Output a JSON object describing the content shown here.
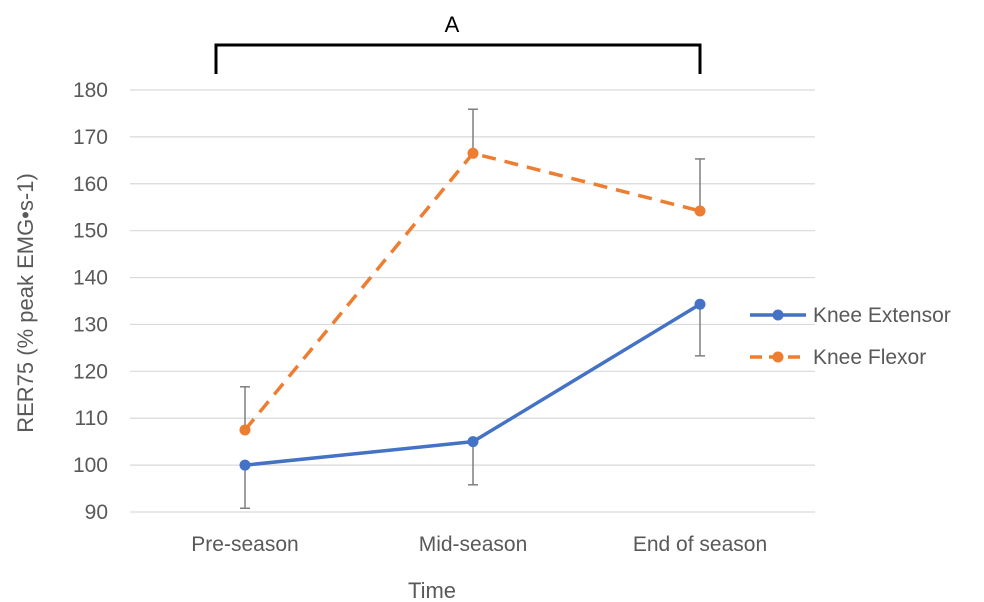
{
  "chart_data": {
    "type": "line",
    "categories": [
      "Pre-season",
      "Mid-season",
      "End of season"
    ],
    "xlabel": "Time",
    "ylabel": "RER75 (% peak EMG•s-1)",
    "ylim": [
      90,
      180
    ],
    "yticks": [
      90,
      100,
      110,
      120,
      130,
      140,
      150,
      160,
      170,
      180
    ],
    "grid": true,
    "legend_position": "right",
    "series": [
      {
        "name": "Knee Extensor",
        "values": [
          100,
          105,
          134.3
        ],
        "error": [
          9.2,
          9.2,
          11.0
        ],
        "error_direction": "lower",
        "color": "#4472C4",
        "line_style": "solid"
      },
      {
        "name": "Knee Flexor",
        "values": [
          107.5,
          166.5,
          154.2
        ],
        "error": [
          9.2,
          9.4,
          11.1
        ],
        "error_direction": "upper",
        "color": "#ED7D31",
        "line_style": "dashed"
      }
    ],
    "annotations": [
      {
        "text": "A",
        "type": "bracket",
        "from_category": "Pre-season",
        "to_category": "End of season"
      }
    ]
  }
}
